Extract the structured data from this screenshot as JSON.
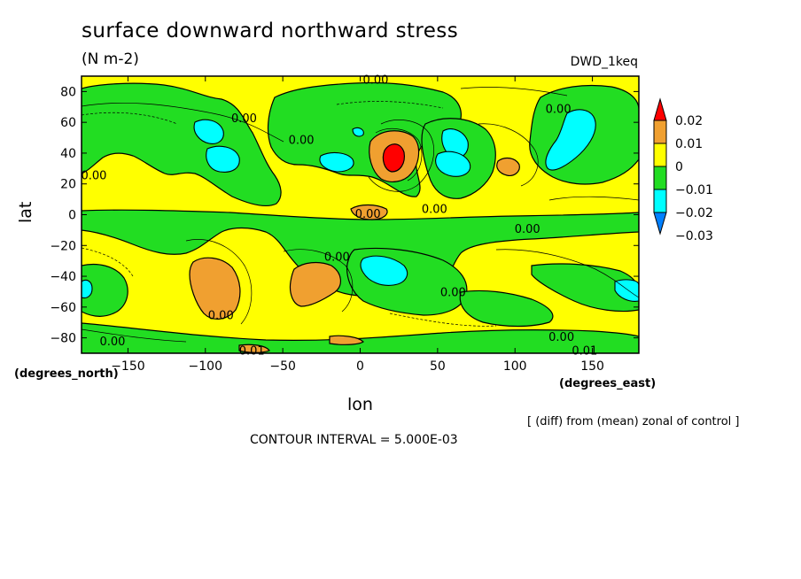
{
  "chart_data": {
    "type": "contour",
    "title": "surface downward northward stress",
    "units": "(N m-2)",
    "run_label": "DWD_1keq",
    "xlabel": "lon",
    "ylabel": "lat",
    "x_unit_label": "(degrees_east)",
    "y_unit_label": "(degrees_north)",
    "xlim": [
      -180,
      180
    ],
    "ylim": [
      -90,
      90
    ],
    "x_ticks": [
      -150,
      -100,
      -50,
      0,
      50,
      100,
      150
    ],
    "y_ticks": [
      80,
      60,
      40,
      20,
      0,
      -20,
      -40,
      -60,
      -80
    ],
    "colorbar": {
      "levels": [
        "0.02",
        "0.01",
        "0",
        "-0.01",
        "-0.02",
        "-0.03"
      ],
      "bins": [
        {
          "color": "#ff0000",
          "range": "> 0.02"
        },
        {
          "color": "#f0a030",
          "range": "0.01 to 0.02"
        },
        {
          "color": "#ffff00",
          "range": "0 to 0.01"
        },
        {
          "color": "#22dd22",
          "range": "-0.01 to 0"
        },
        {
          "color": "#00ffff",
          "range": "-0.02 to -0.01"
        },
        {
          "color": "#0080ff",
          "range": "< -0.02"
        }
      ]
    },
    "contour_labels": [
      {
        "text": "0.00",
        "lon": 10,
        "lat": 88
      },
      {
        "text": "0.00",
        "lon": -75,
        "lat": 63
      },
      {
        "text": "0.00",
        "lon": -38,
        "lat": 49
      },
      {
        "text": "0.00",
        "lon": 128,
        "lat": 69
      },
      {
        "text": "0.00",
        "lon": -172,
        "lat": 26
      },
      {
        "text": "0.00",
        "lon": 5,
        "lat": 1
      },
      {
        "text": "0.00",
        "lon": 48,
        "lat": 4
      },
      {
        "text": "0.00",
        "lon": 108,
        "lat": -9
      },
      {
        "text": "0.00",
        "lon": -15,
        "lat": -27
      },
      {
        "text": "0.00",
        "lon": 60,
        "lat": -50
      },
      {
        "text": "0.00",
        "lon": -90,
        "lat": -65
      },
      {
        "text": "0.00",
        "lon": -160,
        "lat": -82
      },
      {
        "text": "0.00",
        "lon": 130,
        "lat": -79
      },
      {
        "text": "0.01",
        "lon": -70,
        "lat": -88
      },
      {
        "text": "0.01",
        "lon": 145,
        "lat": -88
      }
    ],
    "annotation": "CONTOUR INTERVAL = 5.000E-03",
    "subtitle_right": "[ (diff) from (mean) zonal of control ]"
  }
}
